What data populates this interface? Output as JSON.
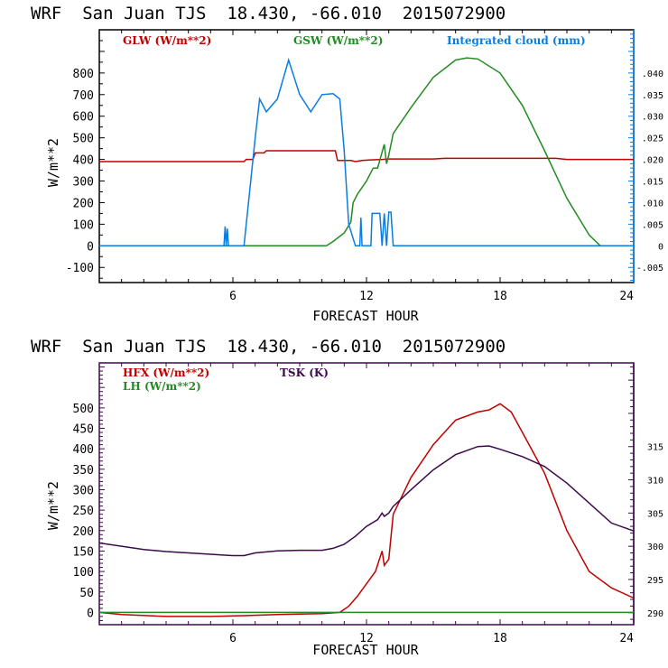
{
  "chart_data": [
    {
      "type": "line",
      "title": "WRF  San Juan TJS  18.430, -66.010  2015072900",
      "xlabel": "FORECAST HOUR",
      "ylabel": "W/m**2",
      "xlim": [
        0,
        24
      ],
      "ylim": [
        -170,
        1000
      ],
      "x_ticks": [
        6,
        12,
        18,
        24
      ],
      "y_ticks": [
        -100,
        0,
        100,
        200,
        300,
        400,
        500,
        600,
        700,
        800
      ],
      "y_tick_labels": [
        "-100",
        "0",
        "100",
        "200",
        "300",
        "400",
        "500",
        "600",
        "700",
        "800"
      ],
      "right_axis": {
        "label": "Integrated cloud (mm)",
        "ylim": [
          -0.0085,
          0.05
        ],
        "ticks": [
          -0.005,
          0,
          0.005,
          0.01,
          0.015,
          0.02,
          0.025,
          0.03,
          0.035,
          0.04
        ],
        "tick_labels": [
          "-.005",
          "0",
          ".005",
          ".010",
          ".015",
          ".020",
          ".025",
          ".030",
          ".035",
          ".040"
        ]
      },
      "series": [
        {
          "name": "GLW (W/m**2)",
          "color": "#c00000",
          "axis": "left",
          "x": [
            0,
            6.5,
            6.6,
            6.9,
            7.0,
            7.4,
            7.5,
            10.6,
            10.7,
            11.3,
            11.5,
            11.8,
            12.2,
            12.7,
            13.0,
            15.0,
            15.5,
            20.5,
            21,
            24
          ],
          "y": [
            390,
            390,
            400,
            400,
            430,
            430,
            440,
            440,
            395,
            395,
            390,
            395,
            398,
            400,
            402,
            402,
            405,
            405,
            400,
            400
          ]
        },
        {
          "name": "GSW (W/m**2)",
          "color": "#228b22",
          "axis": "left",
          "x": [
            0,
            10.2,
            10.5,
            11.0,
            11.3,
            11.4,
            11.6,
            12.0,
            12.3,
            12.5,
            12.8,
            12.9,
            13.0,
            13.2,
            14,
            15,
            16,
            16.5,
            17,
            18,
            19,
            20,
            21,
            22,
            22.5,
            24
          ],
          "y": [
            0,
            0,
            20,
            60,
            110,
            200,
            240,
            300,
            360,
            360,
            470,
            380,
            420,
            520,
            640,
            780,
            860,
            870,
            865,
            800,
            650,
            440,
            220,
            50,
            0,
            0
          ]
        },
        {
          "name": "Integrated cloud (mm)",
          "color": "#0a7de0",
          "axis": "right",
          "x": [
            0,
            5.6,
            5.65,
            5.7,
            5.75,
            5.8,
            6.5,
            7.0,
            7.2,
            7.5,
            8.0,
            8.5,
            9.0,
            9.5,
            10.0,
            10.5,
            10.8,
            11.0,
            11.2,
            11.5,
            11.7,
            11.75,
            11.8,
            12.2,
            12.25,
            12.6,
            12.7,
            12.8,
            12.9,
            13.0,
            13.1,
            13.2,
            24
          ],
          "y": [
            0,
            0,
            0.0045,
            0,
            0.004,
            0,
            0,
            0.025,
            0.034,
            0.031,
            0.034,
            0.043,
            0.035,
            0.031,
            0.035,
            0.0352,
            0.034,
            0.022,
            0.005,
            0,
            0,
            0.0065,
            0,
            0,
            0.0075,
            0.0075,
            0,
            0.0075,
            0,
            0.0078,
            0.0078,
            0,
            0
          ]
        }
      ]
    },
    {
      "type": "line",
      "title": "WRF  San Juan TJS  18.430, -66.010  2015072900",
      "xlabel": "FORECAST HOUR",
      "ylabel": "W/m**2",
      "xlim": [
        0,
        24
      ],
      "ylim": [
        -30,
        610
      ],
      "x_ticks": [
        6,
        12,
        18,
        24
      ],
      "y_ticks": [
        0,
        50,
        100,
        150,
        200,
        250,
        300,
        350,
        400,
        450,
        500
      ],
      "y_tick_labels": [
        "0",
        "50",
        "100",
        "150",
        "200",
        "250",
        "300",
        "350",
        "400",
        "450",
        "500"
      ],
      "right_axis": {
        "label": "TSK (K)",
        "ylim": [
          288.2,
          327.6
        ],
        "ticks": [
          290,
          295,
          300,
          305,
          310,
          315
        ],
        "tick_labels": [
          "290",
          "295",
          "300",
          "305",
          "310",
          "315"
        ]
      },
      "series": [
        {
          "name": "HFX (W/m**2)",
          "color": "#c00000",
          "axis": "left",
          "x": [
            0,
            1,
            3,
            5,
            6.5,
            8,
            10,
            10.8,
            11.2,
            11.6,
            12.0,
            12.4,
            12.7,
            12.8,
            13.0,
            13.2,
            14,
            15,
            16,
            17,
            17.5,
            18,
            18.5,
            19,
            20,
            21,
            22,
            23,
            24
          ],
          "y": [
            0,
            -5,
            -10,
            -10,
            -8,
            -5,
            -3,
            0,
            15,
            40,
            70,
            100,
            150,
            115,
            130,
            240,
            330,
            410,
            470,
            490,
            495,
            510,
            490,
            440,
            340,
            200,
            100,
            60,
            35
          ]
        },
        {
          "name": "LH (W/m**2)",
          "color": "#228b22",
          "axis": "left",
          "x": [
            0,
            24
          ],
          "y": [
            0,
            0
          ]
        },
        {
          "name": "TSK (K)",
          "color": "#3c0a4a",
          "axis": "right",
          "x": [
            0,
            1,
            2,
            3,
            4,
            5,
            6,
            6.5,
            7,
            8,
            9,
            10,
            10.5,
            11,
            11.5,
            12,
            12.5,
            12.7,
            12.8,
            13.0,
            13.2,
            14,
            15,
            16,
            17,
            17.5,
            18,
            19,
            20,
            21,
            22,
            23,
            24
          ],
          "y": [
            300.5,
            300.0,
            299.5,
            299.2,
            299.0,
            298.8,
            298.6,
            298.6,
            299.0,
            299.3,
            299.4,
            299.4,
            299.7,
            300.3,
            301.5,
            303.0,
            304.0,
            305.0,
            304.5,
            305.0,
            306.0,
            308.5,
            311.5,
            313.8,
            315.0,
            315.1,
            314.6,
            313.5,
            312.0,
            309.5,
            306.5,
            303.5,
            302.3
          ]
        }
      ]
    }
  ]
}
